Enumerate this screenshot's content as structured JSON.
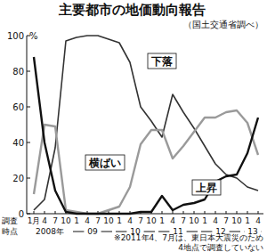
{
  "chart_data": {
    "type": "line",
    "title": "主要都市の地価動向報告",
    "subtitle": "（国土交通省調べ）",
    "x_label": "調査時点",
    "categories": [
      "1月",
      "4",
      "7",
      "10",
      "1",
      "4",
      "7",
      "10",
      "1",
      "4",
      "7",
      "10",
      "1",
      "4",
      "7",
      "10",
      "1",
      "4",
      "7",
      "10",
      "1",
      "4"
    ],
    "x_groups": [
      {
        "label": "2008年",
        "count": 4
      },
      {
        "label": "09",
        "count": 4
      },
      {
        "label": "10",
        "count": 4
      },
      {
        "label": "11",
        "count": 4
      },
      {
        "label": "12",
        "count": 4
      },
      {
        "label": "13",
        "count": 2
      }
    ],
    "series": [
      {
        "name": "下落",
        "color": "#333333",
        "values": [
          2,
          8,
          37,
          97,
          99,
          100,
          100,
          98,
          96,
          85,
          60,
          52,
          43,
          67,
          57,
          48,
          38,
          28,
          22,
          20,
          15,
          13
        ]
      },
      {
        "name": "横ばい",
        "color": "#9a9a9a",
        "values": [
          11,
          50,
          49,
          2,
          1,
          0,
          0,
          2,
          4,
          15,
          39,
          47,
          47,
          31,
          38,
          46,
          54,
          54,
          57,
          58,
          51,
          33
        ]
      },
      {
        "name": "上昇",
        "color": "#111111",
        "values": [
          88,
          40,
          13,
          1,
          0,
          0,
          0,
          0,
          0,
          0,
          1,
          1,
          10,
          2,
          5,
          6,
          8,
          18,
          21,
          22,
          34,
          54
        ]
      }
    ],
    "ylim": [
      0,
      100
    ],
    "yticks": [
      0,
      20,
      40,
      60,
      80,
      100
    ],
    "y_unit": "%",
    "grid": false,
    "notes": [
      "※2011年4、7月は、東日本大震災のため",
      "4地点で調査していない"
    ]
  }
}
